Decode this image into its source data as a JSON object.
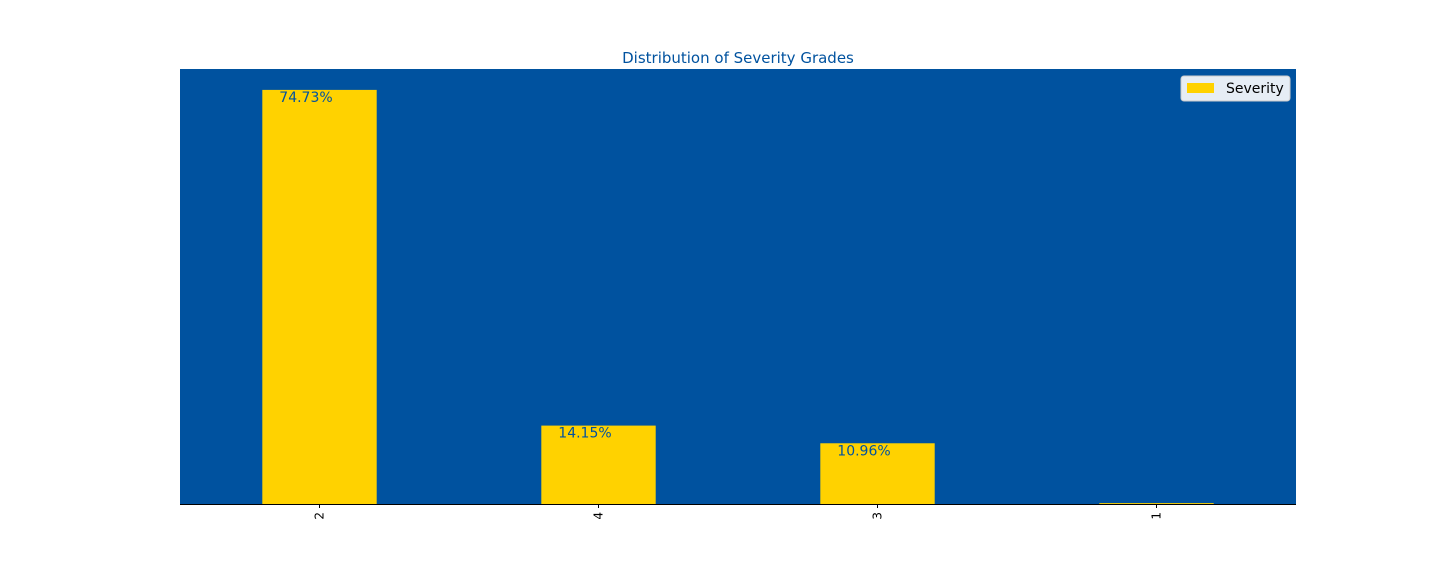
{
  "chart_data": {
    "type": "bar",
    "title": "Distribution of Severity Grades",
    "categories": [
      "2",
      "4",
      "3",
      "1"
    ],
    "series": [
      {
        "name": "Severity",
        "values": [
          74.73,
          14.15,
          10.96,
          0.16
        ]
      }
    ],
    "data_labels": [
      "74.73%",
      "14.15%",
      "10.96%",
      ""
    ],
    "xlabel": "",
    "ylabel": "",
    "ylim": [
      0,
      78.5
    ],
    "grid": false,
    "legend_position": "top-right",
    "colors": {
      "background": "#00529F",
      "bar": "#FFD200",
      "title": "#00529F",
      "data_label": "#00529F",
      "legend_bg": "#E6EDF5"
    }
  }
}
